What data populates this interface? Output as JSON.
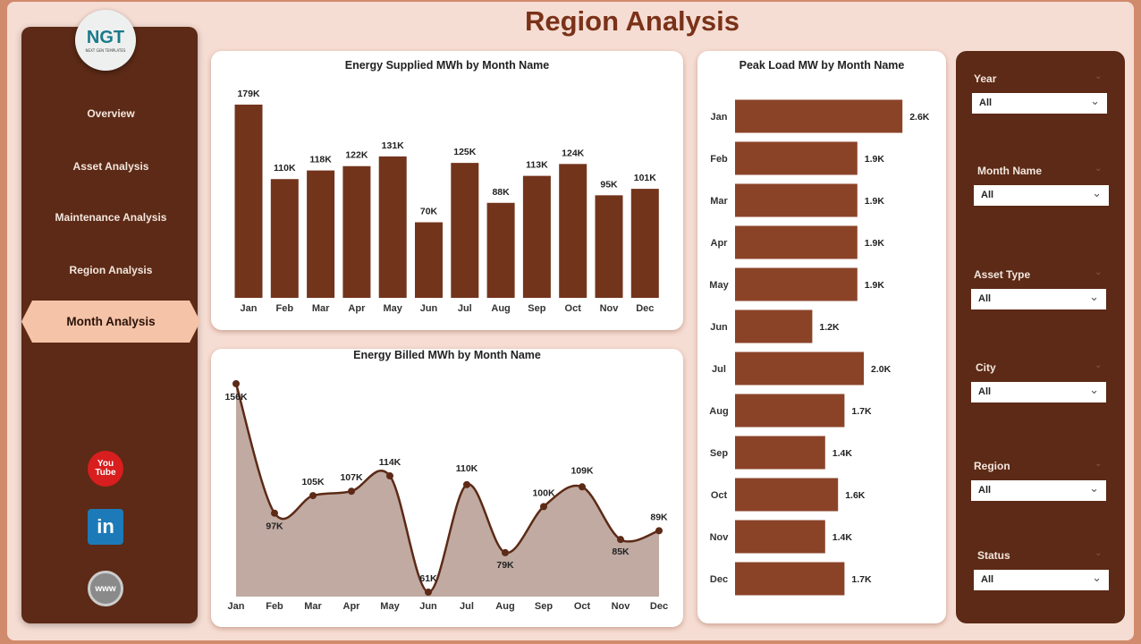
{
  "title": "Region Analysis",
  "logo": {
    "text": "NGT",
    "tagline": "NEXT GEN TEMPLATES"
  },
  "nav": {
    "items": [
      {
        "label": "Overview"
      },
      {
        "label": "Asset Analysis"
      },
      {
        "label": "Maintenance Analysis"
      },
      {
        "label": "Region Analysis"
      },
      {
        "label": "Month Analysis",
        "active": true
      }
    ]
  },
  "social": {
    "youtube": "You Tube",
    "linkedin": "in",
    "web": "www"
  },
  "colors": {
    "sidebar": "#5c2a16",
    "bar": "#73341c",
    "hbar": "#8b4328",
    "accent": "#f5c3a8",
    "area": "#c0aaa2"
  },
  "chart_data": [
    {
      "type": "bar",
      "title": "Energy Supplied MWh by Month Name",
      "categories": [
        "Jan",
        "Feb",
        "Mar",
        "Apr",
        "May",
        "Jun",
        "Jul",
        "Aug",
        "Sep",
        "Oct",
        "Nov",
        "Dec"
      ],
      "values": [
        179,
        110,
        118,
        122,
        131,
        70,
        125,
        88,
        113,
        124,
        95,
        101
      ],
      "labels": [
        "179K",
        "110K",
        "118K",
        "122K",
        "131K",
        "70K",
        "125K",
        "88K",
        "113K",
        "124K",
        "95K",
        "101K"
      ]
    },
    {
      "type": "area",
      "title": "Energy Billed MWh by Month Name",
      "categories": [
        "Jan",
        "Feb",
        "Mar",
        "Apr",
        "May",
        "Jun",
        "Jul",
        "Aug",
        "Sep",
        "Oct",
        "Nov",
        "Dec"
      ],
      "values": [
        156,
        97,
        105,
        107,
        114,
        61,
        110,
        79,
        100,
        109,
        85,
        89
      ],
      "labels": [
        "156K",
        "97K",
        "105K",
        "107K",
        "114K",
        "61K",
        "110K",
        "79K",
        "100K",
        "109K",
        "85K",
        "89K"
      ]
    },
    {
      "type": "bar",
      "orientation": "horizontal",
      "title": "Peak Load MW by Month Name",
      "categories": [
        "Jan",
        "Feb",
        "Mar",
        "Apr",
        "May",
        "Jun",
        "Jul",
        "Aug",
        "Sep",
        "Oct",
        "Nov",
        "Dec"
      ],
      "values": [
        2.6,
        1.9,
        1.9,
        1.9,
        1.9,
        1.2,
        2.0,
        1.7,
        1.4,
        1.6,
        1.4,
        1.7
      ],
      "labels": [
        "2.6K",
        "1.9K",
        "1.9K",
        "1.9K",
        "1.9K",
        "1.2K",
        "2.0K",
        "1.7K",
        "1.4K",
        "1.6K",
        "1.4K",
        "1.7K"
      ]
    }
  ],
  "filters": [
    {
      "label": "Year",
      "value": "All"
    },
    {
      "label": "Month Name",
      "value": "All"
    },
    {
      "label": "Asset Type",
      "value": "All"
    },
    {
      "label": "City",
      "value": "All"
    },
    {
      "label": "Region",
      "value": "All"
    },
    {
      "label": "Status",
      "value": "All"
    }
  ]
}
